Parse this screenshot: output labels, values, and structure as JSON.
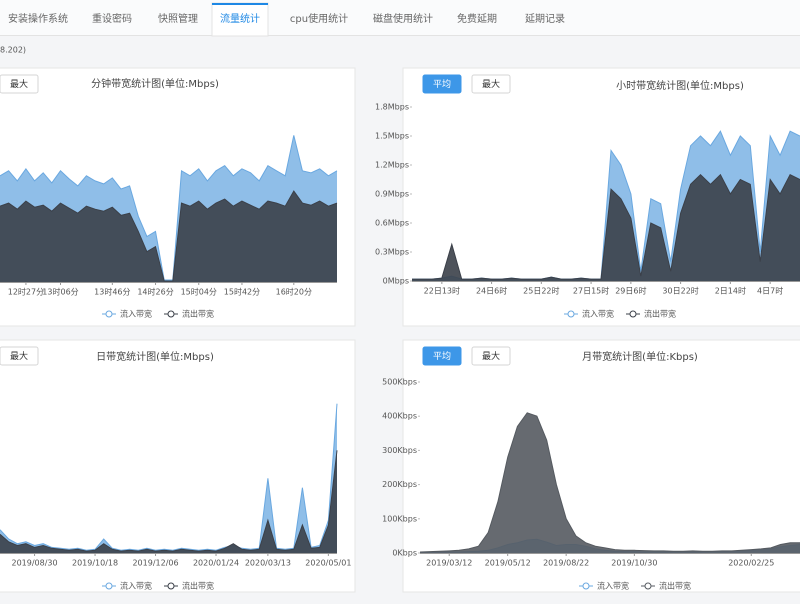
{
  "tabs": [
    "安装操作系统",
    "重设密码",
    "快照管理",
    "流量统计",
    "cpu使用统计",
    "磁盘使用统计",
    "免费延期",
    "延期记录"
  ],
  "ip_text": "8.202)",
  "panels": [
    {
      "buttons": [
        "最大"
      ]
    },
    {
      "buttons": [
        "平均",
        "最大"
      ]
    },
    {
      "buttons": [
        "最大"
      ]
    },
    {
      "buttons": [
        "平均",
        "最大"
      ]
    }
  ],
  "chart_data": [
    {
      "type": "area",
      "title": "分钟带宽统计图(单位:Mbps)",
      "categories": [
        null,
        null,
        null,
        "12时27分",
        null,
        null,
        null,
        "13时06分",
        null,
        null,
        null,
        null,
        null,
        "13时46分",
        null,
        null,
        null,
        null,
        "14时26分",
        null,
        null,
        null,
        null,
        "15时04分",
        null,
        null,
        null,
        null,
        "15时42分",
        null,
        null,
        null,
        null,
        null,
        "16时20分",
        null,
        null,
        null,
        null,
        null
      ],
      "series": [
        {
          "name": "流入带宽",
          "color": "#6aa8e0",
          "values": [
            1.05,
            1.1,
            1.0,
            1.12,
            1.0,
            1.08,
            0.98,
            1.1,
            1.02,
            0.95,
            1.05,
            1.0,
            0.97,
            1.03,
            0.92,
            0.95,
            0.65,
            0.45,
            0.5,
            0.02,
            0.02,
            1.1,
            1.05,
            1.12,
            1.0,
            1.1,
            1.15,
            1.05,
            1.12,
            1.08,
            1.0,
            1.15,
            1.1,
            1.05,
            1.45,
            1.1,
            1.08,
            1.12,
            1.05,
            1.1
          ]
        },
        {
          "name": "流出带宽",
          "color": "#3b4049",
          "values": [
            0.75,
            0.78,
            0.72,
            0.8,
            0.74,
            0.76,
            0.7,
            0.78,
            0.73,
            0.68,
            0.75,
            0.72,
            0.7,
            0.74,
            0.66,
            0.68,
            0.5,
            0.3,
            0.35,
            0.01,
            0.01,
            0.78,
            0.75,
            0.8,
            0.72,
            0.78,
            0.82,
            0.75,
            0.8,
            0.76,
            0.72,
            0.8,
            0.78,
            0.75,
            0.9,
            0.78,
            0.76,
            0.8,
            0.75,
            0.78
          ]
        }
      ],
      "ylim": [
        0,
        1.8
      ]
    },
    {
      "type": "area",
      "title": "小时带宽统计图(单位:Mbps)",
      "categories": [
        null,
        null,
        null,
        "22日13时",
        null,
        null,
        null,
        null,
        "24日6时",
        null,
        null,
        null,
        null,
        "25日22时",
        null,
        null,
        null,
        null,
        "27日15时",
        null,
        null,
        null,
        "29日6时",
        null,
        null,
        null,
        null,
        "30日22时",
        null,
        null,
        null,
        null,
        "2日14时",
        null,
        null,
        null,
        "4日7时",
        null,
        null,
        null
      ],
      "series": [
        {
          "name": "流入带宽",
          "color": "#6aa8e0",
          "values": [
            0.02,
            0.02,
            0.02,
            0.03,
            0.05,
            0.02,
            0.02,
            0.03,
            0.02,
            0.02,
            0.03,
            0.02,
            0.02,
            0.02,
            0.04,
            0.02,
            0.02,
            0.03,
            0.02,
            0.02,
            1.35,
            1.2,
            0.9,
            0.1,
            0.85,
            0.8,
            0.2,
            0.95,
            1.4,
            1.5,
            1.4,
            1.55,
            1.3,
            1.5,
            1.4,
            0.3,
            1.5,
            1.3,
            1.55,
            1.5
          ]
        },
        {
          "name": "流出带宽",
          "color": "#3b4049",
          "values": [
            0.02,
            0.02,
            0.02,
            0.03,
            0.38,
            0.02,
            0.02,
            0.03,
            0.02,
            0.02,
            0.03,
            0.02,
            0.02,
            0.02,
            0.04,
            0.02,
            0.02,
            0.03,
            0.02,
            0.02,
            0.95,
            0.85,
            0.65,
            0.05,
            0.6,
            0.55,
            0.1,
            0.7,
            1.0,
            1.1,
            1.0,
            1.1,
            0.9,
            1.05,
            1.0,
            0.2,
            1.05,
            0.9,
            1.1,
            1.05
          ]
        }
      ],
      "ylim": [
        0,
        1.8
      ],
      "yticks": [
        {
          "value": 0,
          "label": "0Mbps"
        },
        {
          "value": 0.3,
          "label": "0.3Mbps"
        },
        {
          "value": 0.6,
          "label": "0.6Mbps"
        },
        {
          "value": 0.9,
          "label": "0.9Mbps"
        },
        {
          "value": 1.2,
          "label": "1.2Mbps"
        },
        {
          "value": 1.5,
          "label": "1.5Mbps"
        },
        {
          "value": 1.8,
          "label": "1.8Mbps"
        }
      ]
    },
    {
      "type": "area",
      "title": "日带宽统计图(单位:Mbps)",
      "categories": [
        null,
        null,
        null,
        null,
        "2019/08/30",
        null,
        null,
        null,
        null,
        null,
        null,
        "2019/10/18",
        null,
        null,
        null,
        null,
        null,
        null,
        "2019/12/06",
        null,
        null,
        null,
        null,
        null,
        null,
        "2020/01/24",
        null,
        null,
        null,
        null,
        null,
        "2020/03/13",
        null,
        null,
        null,
        null,
        null,
        null,
        "2020/05/01",
        null
      ],
      "series": [
        {
          "name": "流入带宽",
          "color": "#6aa8e0",
          "values": [
            0.25,
            0.15,
            0.1,
            0.12,
            0.08,
            0.1,
            0.06,
            0.05,
            0.04,
            0.05,
            0.03,
            0.04,
            0.15,
            0.05,
            0.03,
            0.04,
            0.03,
            0.05,
            0.03,
            0.04,
            0.03,
            0.05,
            0.04,
            0.03,
            0.04,
            0.03,
            0.06,
            0.08,
            0.05,
            0.04,
            0.05,
            0.8,
            0.05,
            0.04,
            0.05,
            0.7,
            0.06,
            0.08,
            0.35,
            1.6
          ]
        },
        {
          "name": "流出带宽",
          "color": "#3b4049",
          "values": [
            0.2,
            0.12,
            0.08,
            0.1,
            0.06,
            0.08,
            0.05,
            0.04,
            0.03,
            0.04,
            0.02,
            0.03,
            0.1,
            0.04,
            0.02,
            0.03,
            0.02,
            0.04,
            0.02,
            0.03,
            0.02,
            0.04,
            0.03,
            0.02,
            0.03,
            0.02,
            0.05,
            0.1,
            0.04,
            0.03,
            0.04,
            0.35,
            0.04,
            0.03,
            0.04,
            0.3,
            0.05,
            0.06,
            0.3,
            1.1
          ]
        }
      ],
      "ylim": [
        0,
        1.8
      ]
    },
    {
      "type": "area",
      "title": "月带宽统计图(单位:Kbps)",
      "categories": [
        null,
        null,
        null,
        "2019/03/12",
        null,
        null,
        null,
        null,
        null,
        "2019/05/12",
        null,
        null,
        null,
        null,
        null,
        "2019/08/22",
        null,
        null,
        null,
        null,
        null,
        null,
        "2019/10/30",
        null,
        null,
        null,
        null,
        null,
        null,
        null,
        null,
        null,
        null,
        null,
        "2020/02/25",
        null,
        null,
        null,
        null,
        null
      ],
      "series": [
        {
          "name": "流入带宽",
          "color": "#6aa8e0",
          "values": [
            2,
            2,
            2,
            3,
            3,
            4,
            5,
            8,
            15,
            25,
            30,
            38,
            40,
            32,
            22,
            25,
            25,
            20,
            12,
            8,
            5,
            4,
            4,
            3,
            3,
            3,
            3,
            3,
            3,
            3,
            4,
            4,
            5,
            6,
            8,
            10,
            12,
            18,
            22,
            25
          ]
        },
        {
          "name": "流出带宽",
          "color": "#555a60",
          "values": [
            3,
            4,
            5,
            6,
            8,
            12,
            20,
            60,
            150,
            280,
            370,
            410,
            400,
            330,
            200,
            100,
            50,
            30,
            20,
            15,
            10,
            8,
            8,
            7,
            6,
            6,
            5,
            5,
            6,
            5,
            5,
            6,
            6,
            8,
            10,
            12,
            15,
            25,
            30,
            30
          ]
        }
      ],
      "ylim": [
        0,
        500
      ],
      "yticks": [
        {
          "value": 0,
          "label": "0Kbps"
        },
        {
          "value": 100,
          "label": "100Kbps"
        },
        {
          "value": 200,
          "label": "200Kbps"
        },
        {
          "value": 300,
          "label": "300Kbps"
        },
        {
          "value": 400,
          "label": "400Kbps"
        },
        {
          "value": 500,
          "label": "500Kbps"
        }
      ]
    }
  ]
}
